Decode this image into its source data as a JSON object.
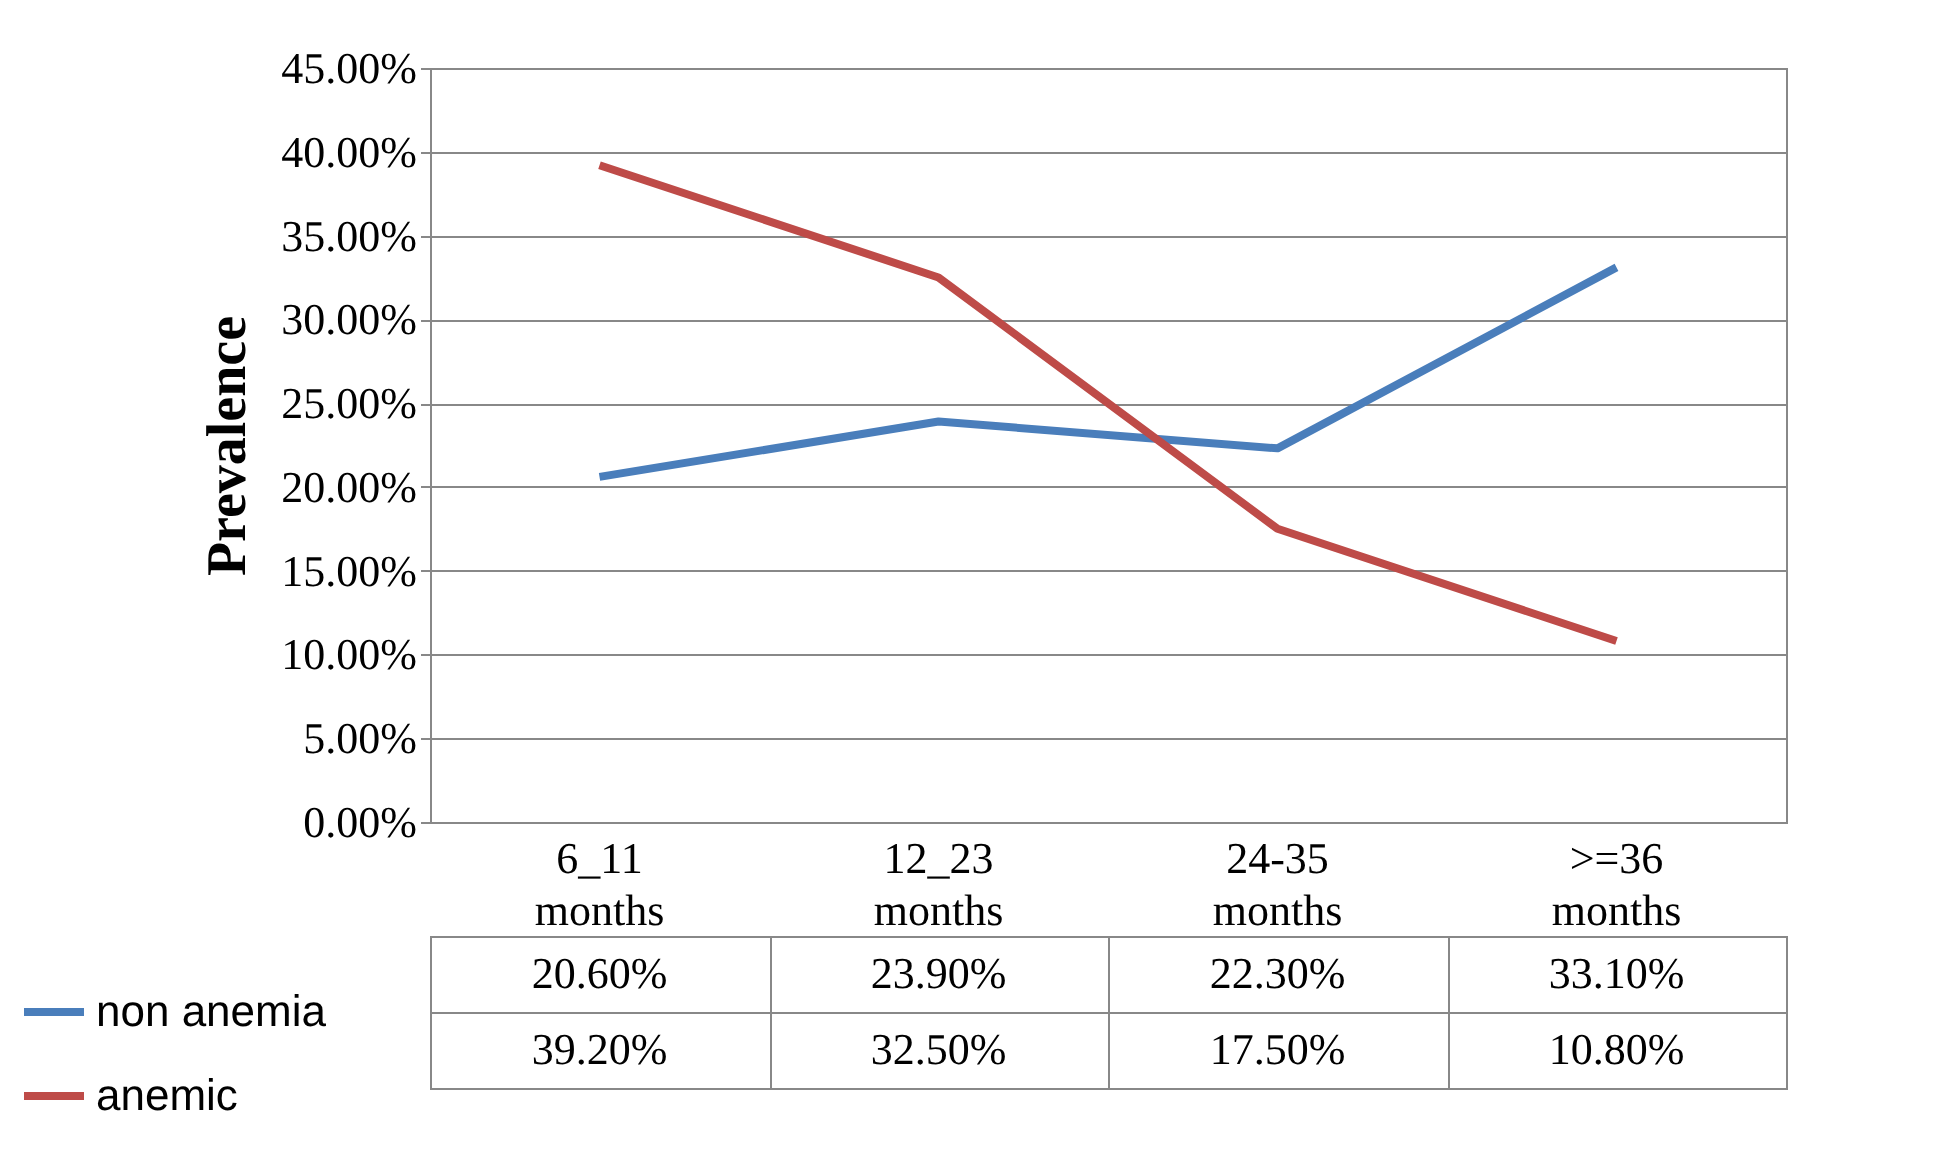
{
  "chart_data": {
    "type": "line",
    "ylabel": "Prevalence",
    "categories": [
      "6_11 months",
      "12_23 months",
      "24-35 months",
      ">=36 months"
    ],
    "ylim": [
      0,
      45
    ],
    "yticks": [
      {
        "value": 0,
        "label": "0.00%"
      },
      {
        "value": 5,
        "label": "5.00%"
      },
      {
        "value": 10,
        "label": "10.00%"
      },
      {
        "value": 15,
        "label": "15.00%"
      },
      {
        "value": 20,
        "label": "20.00%"
      },
      {
        "value": 25,
        "label": "25.00%"
      },
      {
        "value": 30,
        "label": "30.00%"
      },
      {
        "value": 35,
        "label": "35.00%"
      },
      {
        "value": 40,
        "label": "40.00%"
      },
      {
        "value": 45,
        "label": "45.00%"
      }
    ],
    "grid": "y",
    "legend": "bottom left",
    "marker": "none",
    "line_style": "solid",
    "series": [
      {
        "name": "non anemia",
        "color": "#4a7ebb",
        "values": [
          20.6,
          23.9,
          22.3,
          33.1
        ],
        "value_labels": [
          "20.60%",
          "23.90%",
          "22.30%",
          "33.10%"
        ]
      },
      {
        "name": "anemic",
        "color": "#be4b48",
        "values": [
          39.2,
          32.5,
          17.5,
          10.8
        ],
        "value_labels": [
          "39.20%",
          "32.50%",
          "17.50%",
          "10.80%"
        ]
      }
    ]
  }
}
